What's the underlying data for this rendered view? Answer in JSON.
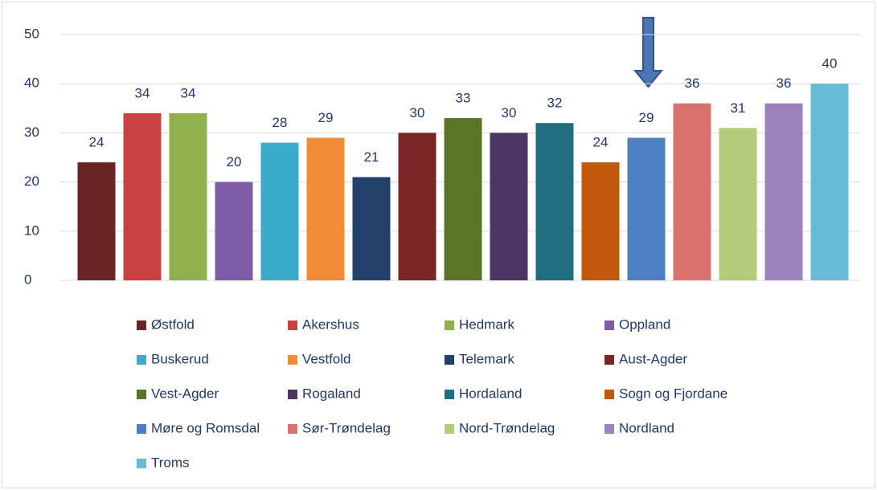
{
  "chart_data": {
    "type": "bar",
    "categories": [
      "Østfold",
      "Akershus",
      "Hedmark",
      "Oppland",
      "Buskerud",
      "Vestfold",
      "Telemark",
      "Aust-Agder",
      "Vest-Agder",
      "Rogaland",
      "Hordaland",
      "Sogn og Fjordane",
      "Møre og Romsdal",
      "Sør-Trøndelag",
      "Nord-Trøndelag",
      "Nordland",
      "Troms"
    ],
    "values": [
      24,
      34,
      34,
      20,
      28,
      29,
      21,
      30,
      33,
      30,
      32,
      24,
      29,
      36,
      31,
      36,
      40
    ],
    "colors": [
      "#6b2424",
      "#c9423f",
      "#8fb04a",
      "#7d5ba6",
      "#3aabc8",
      "#f18b36",
      "#23406b",
      "#7b2626",
      "#5a7428",
      "#4c3565",
      "#1f6f80",
      "#c2580a",
      "#4e7fc2",
      "#d9716f",
      "#b3cb7b",
      "#9b82bd",
      "#66bcd6"
    ],
    "ylim": [
      0,
      50
    ],
    "yticks": [
      0,
      10,
      20,
      30,
      40,
      50
    ],
    "grid": true,
    "legend": "bottom"
  }
}
